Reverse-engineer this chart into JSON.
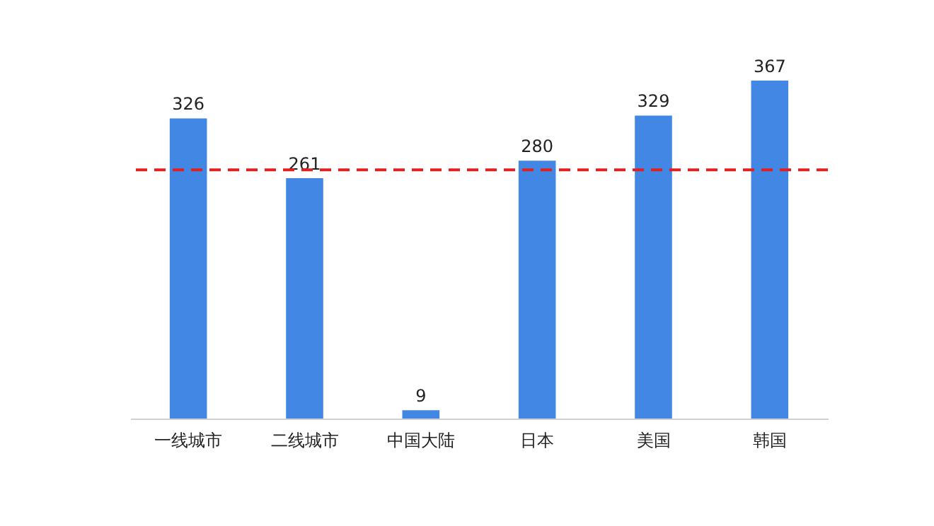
{
  "chart_data": {
    "type": "bar",
    "categories": [
      "一线城市",
      "二线城市",
      "中国大陆",
      "日本",
      "美国",
      "韩国"
    ],
    "values": [
      326,
      261,
      9,
      280,
      329,
      367
    ],
    "color": "#4187e3",
    "data_labels": true,
    "ref_lines": [
      {
        "axis": "y",
        "value": 270,
        "color": "#e02020",
        "line_style": "dashed"
      }
    ]
  }
}
